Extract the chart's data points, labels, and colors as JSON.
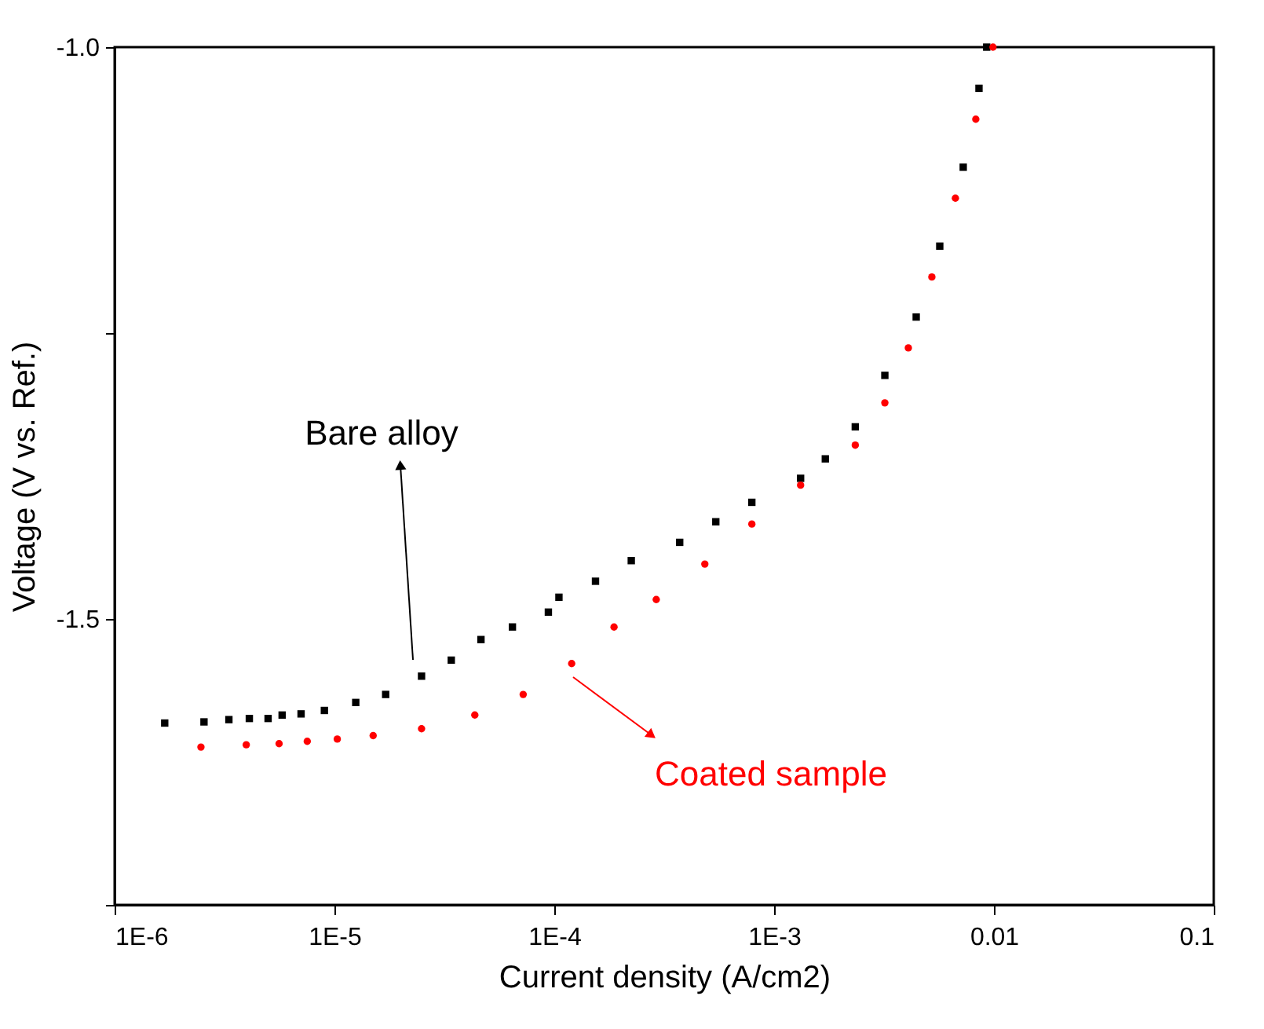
{
  "chart_data": {
    "type": "scatter",
    "xlabel": "Current density (A/cm2)",
    "ylabel": "Voltage (V vs. Ref.)",
    "log": "x",
    "xlim": [
      1e-06,
      0.1
    ],
    "xticks": [
      {
        "value": 1e-06,
        "label": "1E-6"
      },
      {
        "value": 1e-05,
        "label": "1E-5"
      },
      {
        "value": 0.0001,
        "label": "1E-4"
      },
      {
        "value": 0.001,
        "label": "1E-3"
      },
      0.01,
      0.1
    ],
    "ylim": [
      -1.75,
      -1.0
    ],
    "yticks": [
      {
        "value": -1.75,
        "label": null
      },
      {
        "value": -1.5,
        "label": "-1.5"
      },
      {
        "value": -1.25,
        "label": null
      },
      {
        "value": -1.0,
        "label": "-1.0"
      }
    ],
    "grid": false,
    "series": [
      {
        "color": "#000000",
        "marker": "square",
        "x": [
          1.69e-06,
          2.55e-06,
          3.31e-06,
          4.1e-06,
          4.99e-06,
          5.78e-06,
          7.05e-06,
          9e-06,
          1.25e-05,
          1.71e-05,
          2.49e-05,
          3.4e-05,
          4.64e-05,
          6.45e-05,
          9.4e-05,
          0.000105,
          0.000154,
          0.000224,
          0.000372,
          0.000543,
          0.000792,
          0.00132,
          0.00171,
          0.00234,
          0.00319,
          0.00443,
          0.00567,
          0.00725,
          0.00855,
          0.00927
        ],
        "values": [
          -1.591,
          -1.59,
          -1.588,
          -1.587,
          -1.587,
          -1.584,
          -1.583,
          -1.58,
          -1.573,
          -1.566,
          -1.55,
          -1.536,
          -1.518,
          -1.507,
          -1.494,
          -1.481,
          -1.467,
          -1.449,
          -1.433,
          -1.415,
          -1.398,
          -1.377,
          -1.36,
          -1.332,
          -1.287,
          -1.236,
          -1.174,
          -1.105,
          -1.036,
          -1.0
        ]
      },
      {
        "color": "#ff0000",
        "marker": "circle",
        "x": [
          2.47e-06,
          3.97e-06,
          5.6e-06,
          7.52e-06,
          1.03e-05,
          1.5e-05,
          2.49e-05,
          4.35e-05,
          7.22e-05,
          0.00012,
          0.000187,
          0.000291,
          0.000484,
          0.000792,
          0.00132,
          0.00234,
          0.00319,
          0.00408,
          0.00522,
          0.00668,
          0.00827,
          0.0099
        ],
        "values": [
          -1.612,
          -1.61,
          -1.609,
          -1.607,
          -1.605,
          -1.602,
          -1.596,
          -1.584,
          -1.566,
          -1.539,
          -1.507,
          -1.483,
          -1.452,
          -1.417,
          -1.383,
          -1.348,
          -1.311,
          -1.263,
          -1.201,
          -1.132,
          -1.063,
          -1.0
        ]
      }
    ],
    "annotations": [
      "Bare alloy",
      "Coated sample"
    ]
  }
}
